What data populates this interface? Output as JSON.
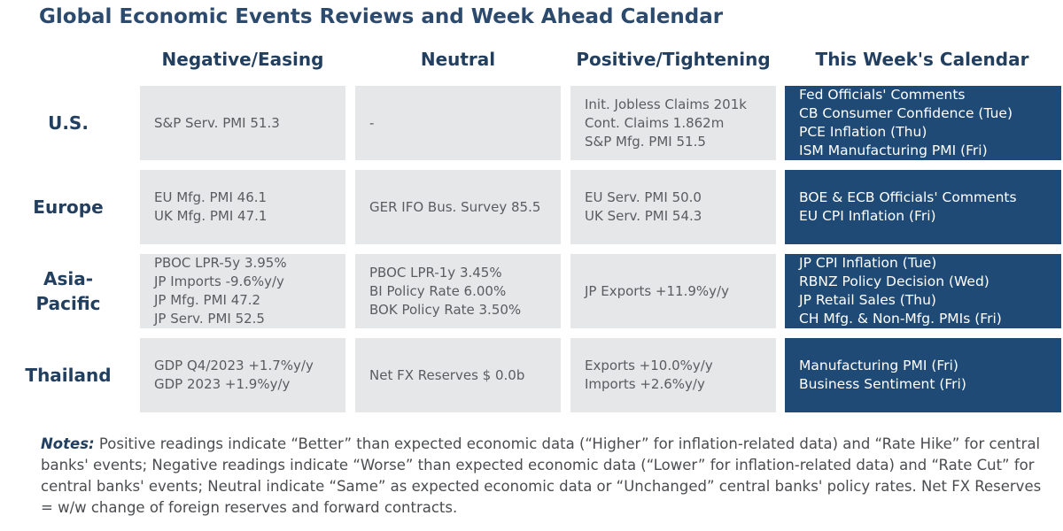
{
  "title": "Global Economic Events Reviews and Week Ahead Calendar",
  "columns": [
    "Negative/Easing",
    "Neutral",
    "Positive/Tightening",
    "This Week's Calendar"
  ],
  "rows": [
    {
      "label": "U.S.",
      "negative": [
        "S&P Serv. PMI 51.3"
      ],
      "neutral": [
        "-"
      ],
      "positive": [
        "Init. Jobless Claims 201k",
        "Cont. Claims 1.862m",
        "S&P Mfg. PMI 51.5"
      ],
      "calendar": [
        "Fed Officials' Comments",
        "CB Consumer Confidence (Tue)",
        "PCE Inflation (Thu)",
        "ISM Manufacturing PMI (Fri)"
      ]
    },
    {
      "label": "Europe",
      "negative": [
        "EU Mfg. PMI 46.1",
        "UK Mfg. PMI 47.1"
      ],
      "neutral": [
        "GER IFO Bus. Survey 85.5"
      ],
      "positive": [
        "EU Serv. PMI 50.0",
        "UK Serv. PMI 54.3"
      ],
      "calendar": [
        "BOE & ECB Officials' Comments",
        "EU CPI Inflation (Fri)"
      ]
    },
    {
      "label": "Asia-\nPacific",
      "negative": [
        "PBOC LPR-5y 3.95%",
        "JP Imports -9.6%y/y",
        "JP Mfg. PMI 47.2",
        "JP Serv. PMI 52.5"
      ],
      "neutral": [
        "PBOC LPR-1y 3.45%",
        "BI Policy Rate 6.00%",
        "BOK Policy Rate 3.50%"
      ],
      "positive": [
        "JP Exports +11.9%y/y"
      ],
      "calendar": [
        "JP CPI Inflation (Tue)",
        "RBNZ Policy Decision (Wed)",
        "JP Retail Sales (Thu)",
        "CH Mfg. & Non-Mfg. PMIs (Fri)"
      ]
    },
    {
      "label": "Thailand",
      "negative": [
        "GDP Q4/2023 +1.7%y/y",
        "GDP 2023 +1.9%y/y"
      ],
      "neutral": [
        "Net FX Reserves $ 0.0b"
      ],
      "positive": [
        "Exports +10.0%y/y",
        "Imports +2.6%y/y"
      ],
      "calendar": [
        "Manufacturing PMI (Fri)",
        "Business Sentiment (Fri)"
      ]
    }
  ],
  "notes": {
    "label": "Notes:",
    "text": "Positive readings indicate “Better” than expected economic data (“Higher” for inflation-related data) and “Rate Hike” for central banks' events; Negative readings indicate “Worse” than expected economic data (“Lower” for inflation-related data) and “Rate Cut” for central banks' events; Neutral indicate “Same” as expected economic data or “Unchanged” central banks' policy rates. Net FX Reserves = w/w change of foreign reserves and forward contracts."
  }
}
